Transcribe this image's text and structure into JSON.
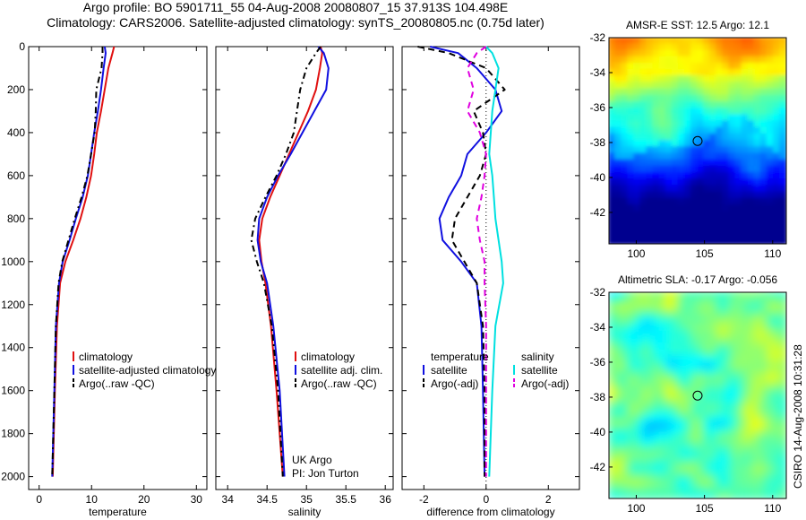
{
  "title_line1": "Argo profile: BO 5901711_55 04-Aug-2008 20080807_15 37.913S 104.498E",
  "title_line2": "Climatology: CARS2006. Satellite-adjusted climatology: synTS_20080805.nc (0.75d later)",
  "credit": "CSIRO 14-Aug-2008 10:31:28",
  "colors": {
    "red": "#e01010",
    "blue": "#1010e0",
    "black": "#000000",
    "cyan": "#00e0e0",
    "magenta": "#e000e0"
  },
  "chart_data": [
    {
      "type": "line",
      "xlabel": "temperature",
      "xlim": [
        -2,
        32
      ],
      "xticks": [
        0,
        10,
        20,
        30
      ],
      "ylim": [
        0,
        2060
      ],
      "yticks": [
        0,
        200,
        400,
        600,
        800,
        1000,
        1200,
        1400,
        1600,
        1800,
        2000
      ],
      "legend": [
        "climatology",
        "satellite-adjusted climatology",
        "Argo(..raw -QC)"
      ],
      "series": [
        {
          "name": "climatology",
          "color": "red",
          "x": [
            14.3,
            14.0,
            13.2,
            12.5,
            11.8,
            11.0,
            10.5,
            9.9,
            9.0,
            7.9,
            6.5,
            5.0,
            4.0,
            3.4,
            3.0,
            2.6
          ],
          "y": [
            0,
            30,
            100,
            200,
            300,
            400,
            500,
            600,
            700,
            800,
            900,
            1000,
            1100,
            1300,
            1600,
            2000
          ]
        },
        {
          "name": "satellite-adjusted climatology",
          "color": "blue",
          "x": [
            12.5,
            12.7,
            12.3,
            11.8,
            11.2,
            10.5,
            9.9,
            9.3,
            8.3,
            7.0,
            5.8,
            4.5,
            3.8,
            3.2,
            2.9,
            2.5
          ],
          "y": [
            0,
            30,
            100,
            200,
            300,
            400,
            500,
            600,
            700,
            800,
            900,
            1000,
            1100,
            1300,
            1600,
            2000
          ]
        },
        {
          "name": "Argo(..raw -QC)",
          "color": "black",
          "x": [
            12.1,
            12.1,
            11.9,
            10.9,
            10.8,
            10.6,
            9.9,
            9.2,
            8.1,
            6.8,
            5.6,
            4.4,
            3.7,
            3.2,
            2.9,
            2.5
          ],
          "y": [
            0,
            30,
            100,
            200,
            300,
            400,
            500,
            600,
            700,
            800,
            900,
            1000,
            1100,
            1300,
            1600,
            2000
          ]
        }
      ]
    },
    {
      "type": "line",
      "xlabel": "salinity",
      "xlim": [
        33.85,
        36.1
      ],
      "xticks": [
        34,
        34.5,
        35,
        35.5,
        36
      ],
      "xticklabels": [
        "34",
        "34.5",
        "35",
        "35.5",
        "36"
      ],
      "ylim": [
        0,
        2060
      ],
      "legend": [
        "climatology",
        "satellite adj. clim.",
        "Argo(..raw -QC)"
      ],
      "annotations": [
        "UK Argo",
        "PI: Jon Turton"
      ],
      "series": [
        {
          "name": "climatology",
          "color": "red",
          "x": [
            35.18,
            35.2,
            35.17,
            35.12,
            35.02,
            34.9,
            34.78,
            34.66,
            34.54,
            34.44,
            34.4,
            34.43,
            34.48,
            34.55,
            34.62,
            34.7
          ],
          "y": [
            0,
            30,
            100,
            200,
            300,
            400,
            500,
            600,
            700,
            800,
            900,
            1000,
            1100,
            1300,
            1600,
            2000
          ]
        },
        {
          "name": "satellite adj. clim.",
          "color": "blue",
          "x": [
            35.15,
            35.22,
            35.28,
            35.25,
            35.1,
            34.95,
            34.8,
            34.64,
            34.5,
            34.4,
            34.38,
            34.42,
            34.5,
            34.58,
            34.66,
            34.72
          ],
          "y": [
            0,
            30,
            100,
            200,
            300,
            400,
            500,
            600,
            700,
            800,
            900,
            1000,
            1100,
            1300,
            1600,
            2000
          ]
        },
        {
          "name": "Argo(..raw -QC)",
          "color": "black",
          "x": [
            35.18,
            35.12,
            35.0,
            34.92,
            34.88,
            34.84,
            34.74,
            34.62,
            34.48,
            34.35,
            34.3,
            34.37,
            34.46,
            34.56,
            34.64,
            34.7
          ],
          "y": [
            0,
            30,
            100,
            200,
            300,
            400,
            500,
            600,
            700,
            800,
            900,
            1000,
            1100,
            1300,
            1600,
            2000
          ]
        }
      ]
    },
    {
      "type": "line",
      "xlabel": "difference from climatology",
      "xlim": [
        -2.7,
        3.0
      ],
      "xticks": [
        -2,
        0,
        2
      ],
      "ylim": [
        0,
        2060
      ],
      "legend_headers": [
        "temperature",
        "salinity"
      ],
      "legend": [
        "satellite",
        "Argo(-adj)",
        "satellite",
        "Argo(-adj)"
      ],
      "series": [
        {
          "name": "satellite",
          "group": "temperature",
          "color": "blue",
          "x": [
            -1.8,
            -0.9,
            -0.3,
            0.3,
            0.5,
            0.0,
            -0.6,
            -0.8,
            -1.2,
            -1.5,
            -1.4,
            -0.8,
            -0.3,
            -0.15,
            -0.1,
            -0.05
          ],
          "y": [
            0,
            30,
            100,
            200,
            300,
            400,
            500,
            600,
            700,
            800,
            900,
            1000,
            1100,
            1300,
            1600,
            2000
          ]
        },
        {
          "name": "Argo(-adj)",
          "group": "temperature",
          "color": "black",
          "x": [
            -2.2,
            -1.2,
            0.0,
            0.6,
            -0.4,
            -0.1,
            0.0,
            -0.2,
            -0.6,
            -1.0,
            -1.1,
            -0.7,
            -0.3,
            -0.1,
            -0.05,
            -0.05
          ],
          "y": [
            0,
            30,
            100,
            200,
            300,
            400,
            500,
            600,
            700,
            800,
            900,
            1000,
            1100,
            1300,
            1600,
            2000
          ]
        },
        {
          "name": "satellite",
          "group": "salinity",
          "color": "cyan",
          "x": [
            0.0,
            0.2,
            0.4,
            0.3,
            0.2,
            0.15,
            0.1,
            0.2,
            0.25,
            0.3,
            0.4,
            0.5,
            0.55,
            0.3,
            0.2,
            0.1
          ],
          "y": [
            0,
            30,
            100,
            200,
            300,
            400,
            500,
            600,
            700,
            800,
            900,
            1000,
            1100,
            1300,
            1600,
            2000
          ]
        },
        {
          "name": "Argo(-adj)",
          "group": "salinity",
          "color": "magenta",
          "x": [
            0.0,
            -0.3,
            -0.6,
            -0.4,
            -0.6,
            -0.2,
            0.0,
            -0.05,
            -0.15,
            -0.3,
            -0.2,
            -0.05,
            -0.05,
            0.0,
            0.0,
            0.0
          ],
          "y": [
            0,
            30,
            100,
            200,
            300,
            400,
            500,
            600,
            700,
            800,
            900,
            1000,
            1100,
            1300,
            1600,
            2000
          ]
        }
      ]
    },
    {
      "type": "heatmap",
      "title": "AMSR-E SST: 12.5  Argo: 12.1",
      "xlim": [
        98,
        111
      ],
      "ylim": [
        -43.8,
        -32
      ],
      "xticks": [
        100,
        105,
        110
      ],
      "yticks": [
        -32,
        -34,
        -36,
        -38,
        -40,
        -42
      ],
      "marker": {
        "x": 104.498,
        "y": -37.913
      }
    },
    {
      "type": "heatmap",
      "title": "Altimetric SLA: -0.17  Argo: -0.056",
      "xlim": [
        98,
        111
      ],
      "ylim": [
        -43.8,
        -32
      ],
      "xticks": [
        100,
        105,
        110
      ],
      "yticks": [
        -32,
        -34,
        -36,
        -38,
        -40,
        -42
      ],
      "marker": {
        "x": 104.498,
        "y": -37.913
      }
    }
  ]
}
